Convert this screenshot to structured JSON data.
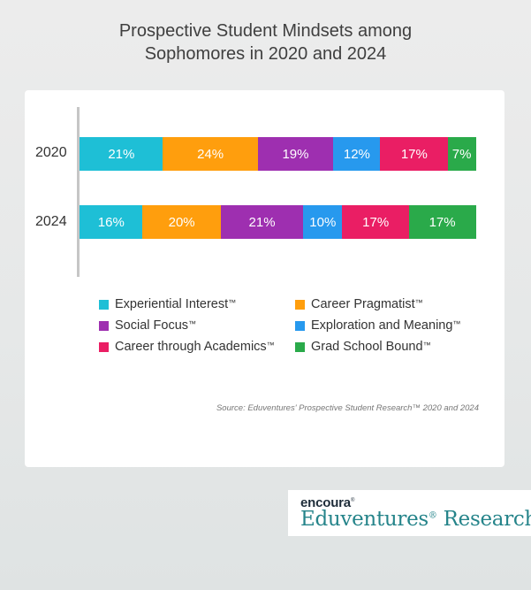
{
  "title_lines": [
    "Prospective Student Mindsets among",
    "Sophomores in 2020 and 2024"
  ],
  "chart_data": {
    "type": "bar",
    "orientation": "horizontal",
    "stacked": true,
    "title": "Prospective Student Mindsets among Sophomores in 2020 and 2024",
    "categories": [
      "2020",
      "2024"
    ],
    "series": [
      {
        "name": "Experiential Interest",
        "color": "#1ebfd6",
        "values": [
          21,
          16
        ],
        "labels": [
          "21%",
          "16%"
        ]
      },
      {
        "name": "Career Pragmatist",
        "color": "#ff9e0d",
        "values": [
          24,
          20
        ],
        "labels": [
          "24%",
          "20%"
        ]
      },
      {
        "name": "Social Focus",
        "color": "#9e2fb0",
        "values": [
          19,
          21
        ],
        "labels": [
          "19%",
          "21%"
        ]
      },
      {
        "name": "Exploration and Meaning",
        "color": "#2799ee",
        "values": [
          12,
          10
        ],
        "labels": [
          "12%",
          "10%"
        ]
      },
      {
        "name": "Career through Academics",
        "color": "#ea1e64",
        "values": [
          17,
          17
        ],
        "labels": [
          "17%",
          "17%"
        ]
      },
      {
        "name": "Grad School Bound",
        "color": "#2aaa4a",
        "values": [
          7,
          17
        ],
        "labels": [
          "7%",
          "17%"
        ]
      }
    ],
    "xlabel": "",
    "ylabel": "",
    "legend_position": "bottom",
    "grid": false
  },
  "legend_tm": "™",
  "source": "Source: Eduventures' Prospective Student Research™ 2020 and 2024",
  "brand": {
    "top": "encoura",
    "top_mark": "®",
    "bottom": "Eduventures",
    "bottom_mark": "®",
    "bottom_tail": " Research"
  }
}
